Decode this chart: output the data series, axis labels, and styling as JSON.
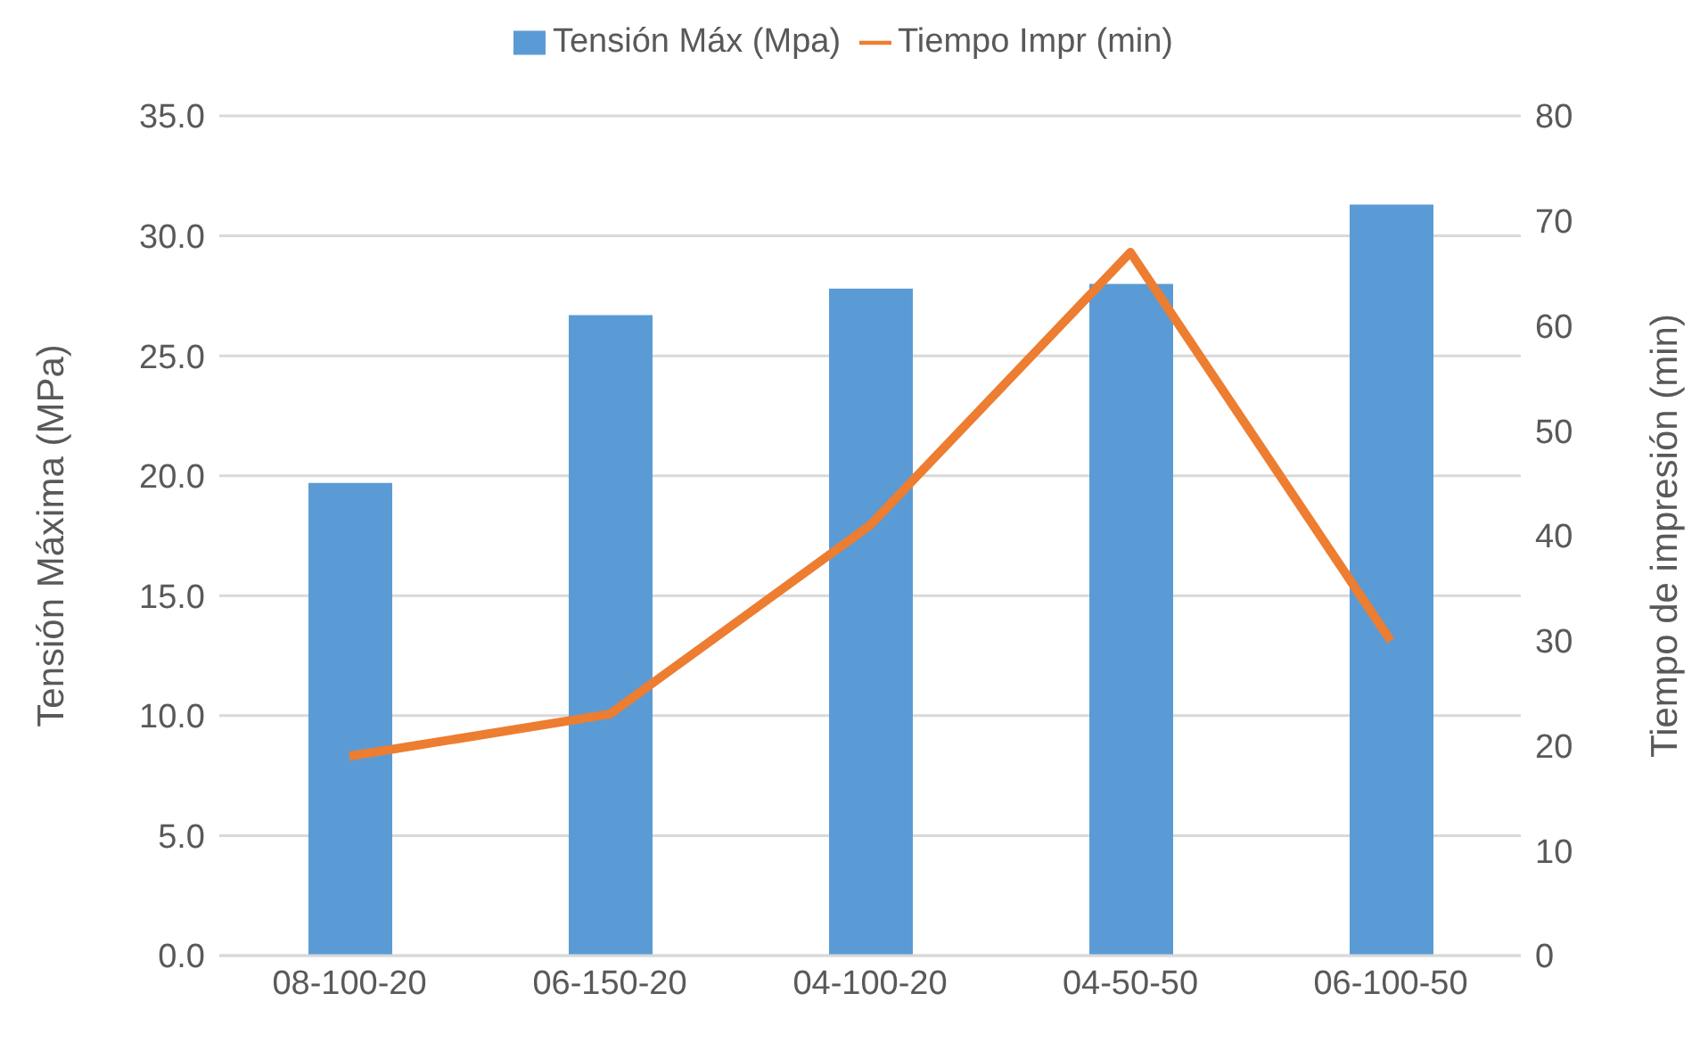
{
  "chart_data": {
    "type": "bar",
    "categories": [
      "08-100-20",
      "06-150-20",
      "04-100-20",
      "04-50-50",
      "06-100-50"
    ],
    "ylabel": "Tensión Máxima (MPa)",
    "y2label": "Tiempo de impresión (min)",
    "ylim": [
      0,
      35
    ],
    "yticks": [
      {
        "value": 0,
        "label": "0.0"
      },
      {
        "value": 5,
        "label": "5.0"
      },
      {
        "value": 10,
        "label": "10.0"
      },
      {
        "value": 15,
        "label": "15.0"
      },
      {
        "value": 20,
        "label": "20.0"
      },
      {
        "value": 25,
        "label": "25.0"
      },
      {
        "value": 30,
        "label": "30.0"
      },
      {
        "value": 35,
        "label": "35.0"
      }
    ],
    "y2lim": [
      0,
      80
    ],
    "y2ticks": [
      0,
      10,
      20,
      30,
      40,
      50,
      60,
      70,
      80
    ],
    "grid": "y",
    "legend": "top",
    "marker": "none",
    "series": [
      {
        "name": "Tensión Máx (Mpa)",
        "color": "#5b9bd5",
        "values": [
          19.7,
          26.7,
          27.8,
          28.0,
          31.3
        ]
      },
      {
        "name": "Tiempo Impr (min)",
        "type": "line",
        "axis": "y2",
        "color": "#ed7d31",
        "values": [
          19,
          23,
          41,
          67,
          30
        ]
      }
    ]
  }
}
